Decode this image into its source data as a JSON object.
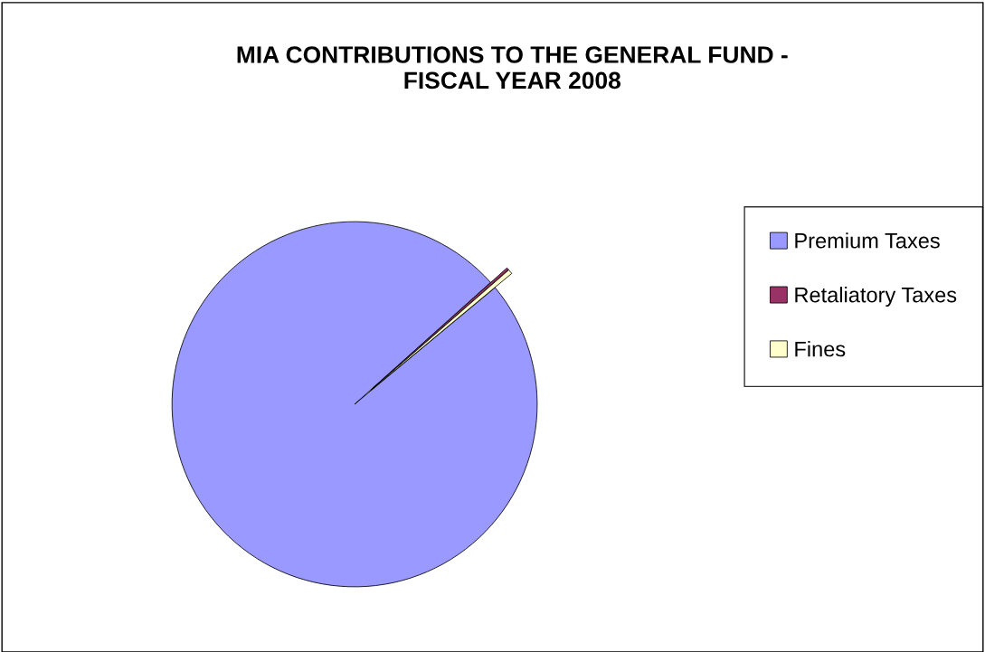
{
  "chart_data": {
    "type": "pie",
    "title": "MIA CONTRIBUTIONS TO THE GENERAL FUND -\nFISCAL YEAR 2008",
    "categories": [
      "Premium Taxes",
      "Retaliatory Taxes",
      "Fines"
    ],
    "values": [
      99.4,
      0.2,
      0.4
    ],
    "colors": [
      "#9999ff",
      "#993366",
      "#ffffcc"
    ],
    "legend": "right"
  }
}
